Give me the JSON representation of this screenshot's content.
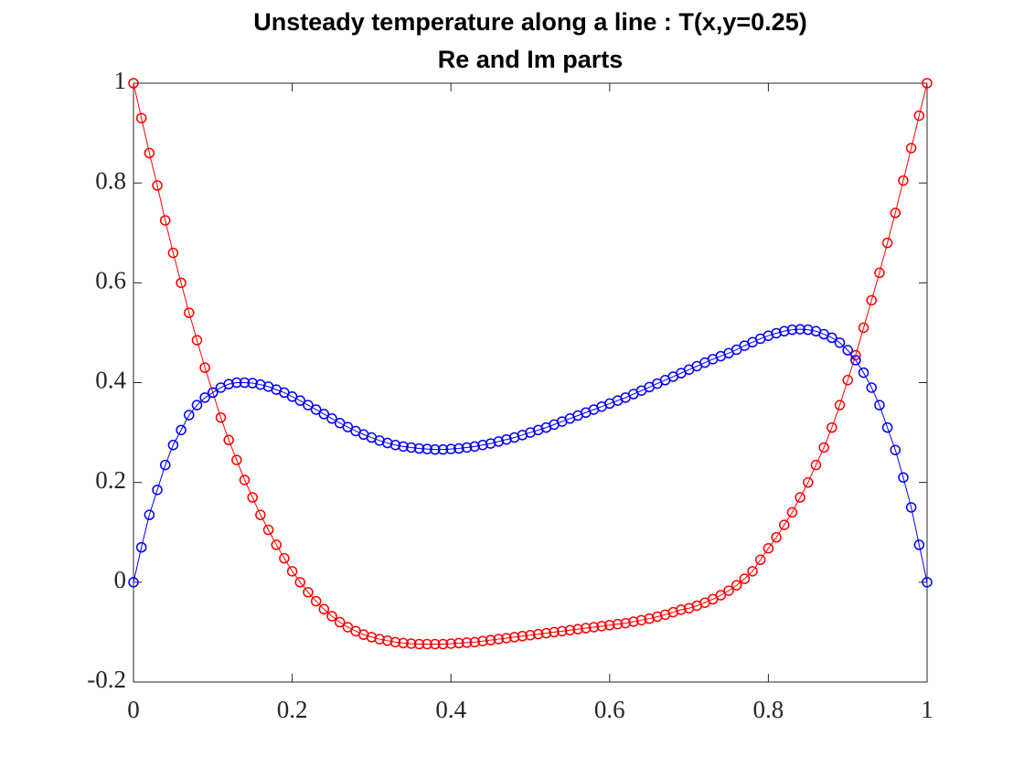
{
  "chart_data": {
    "type": "line",
    "title": "Unsteady temperature along a line : T(x,y=0.25)",
    "subtitle": "Re and Im parts",
    "x": [
      0,
      0.01,
      0.02,
      0.03,
      0.04,
      0.05,
      0.06,
      0.07,
      0.08,
      0.09,
      0.1,
      0.11,
      0.12,
      0.13,
      0.14,
      0.15,
      0.16,
      0.17,
      0.18,
      0.19,
      0.2,
      0.21,
      0.22,
      0.23,
      0.24,
      0.25,
      0.26,
      0.27,
      0.28,
      0.29,
      0.3,
      0.31,
      0.32,
      0.33,
      0.34,
      0.35,
      0.36,
      0.37,
      0.38,
      0.39,
      0.4,
      0.41,
      0.42,
      0.43,
      0.44,
      0.45,
      0.46,
      0.47,
      0.48,
      0.49,
      0.5,
      0.51,
      0.52,
      0.53,
      0.54,
      0.55,
      0.56,
      0.57,
      0.58,
      0.59,
      0.6,
      0.61,
      0.62,
      0.63,
      0.64,
      0.65,
      0.66,
      0.67,
      0.68,
      0.69,
      0.7,
      0.71,
      0.72,
      0.73,
      0.74,
      0.75,
      0.76,
      0.77,
      0.78,
      0.79,
      0.8,
      0.81,
      0.82,
      0.83,
      0.84,
      0.85,
      0.86,
      0.87,
      0.88,
      0.89,
      0.9,
      0.91,
      0.92,
      0.93,
      0.94,
      0.95,
      0.96,
      0.97,
      0.98,
      0.99,
      1
    ],
    "series": [
      {
        "color": "#ff0000",
        "values": [
          1,
          0.93,
          0.86,
          0.795,
          0.725,
          0.66,
          0.6,
          0.54,
          0.485,
          0.43,
          0.38,
          0.33,
          0.285,
          0.245,
          0.205,
          0.17,
          0.135,
          0.105,
          0.075,
          0.048,
          0.022,
          0,
          -0.02,
          -0.038,
          -0.054,
          -0.068,
          -0.08,
          -0.09,
          -0.098,
          -0.105,
          -0.11,
          -0.114,
          -0.117,
          -0.12,
          -0.122,
          -0.123,
          -0.124,
          -0.124,
          -0.124,
          -0.124,
          -0.123,
          -0.122,
          -0.121,
          -0.12,
          -0.118,
          -0.116,
          -0.114,
          -0.112,
          -0.11,
          -0.108,
          -0.106,
          -0.104,
          -0.102,
          -0.1,
          -0.098,
          -0.096,
          -0.094,
          -0.092,
          -0.09,
          -0.088,
          -0.086,
          -0.084,
          -0.082,
          -0.079,
          -0.076,
          -0.073,
          -0.069,
          -0.065,
          -0.06,
          -0.055,
          -0.052,
          -0.047,
          -0.041,
          -0.034,
          -0.026,
          -0.017,
          -0.006,
          0.007,
          0.022,
          0.045,
          0.068,
          0.09,
          0.115,
          0.14,
          0.17,
          0.2,
          0.235,
          0.27,
          0.31,
          0.355,
          0.405,
          0.455,
          0.51,
          0.565,
          0.62,
          0.68,
          0.74,
          0.805,
          0.87,
          0.935,
          1
        ]
      },
      {
        "color": "#0000ff",
        "values": [
          0,
          0.07,
          0.135,
          0.185,
          0.235,
          0.275,
          0.305,
          0.335,
          0.355,
          0.37,
          0.38,
          0.39,
          0.397,
          0.4,
          0.4,
          0.399,
          0.396,
          0.392,
          0.386,
          0.38,
          0.372,
          0.364,
          0.355,
          0.346,
          0.337,
          0.328,
          0.319,
          0.311,
          0.303,
          0.296,
          0.29,
          0.284,
          0.279,
          0.275,
          0.272,
          0.27,
          0.268,
          0.267,
          0.266,
          0.266,
          0.267,
          0.268,
          0.27,
          0.272,
          0.275,
          0.278,
          0.282,
          0.286,
          0.29,
          0.295,
          0.3,
          0.305,
          0.31,
          0.316,
          0.322,
          0.328,
          0.334,
          0.34,
          0.346,
          0.352,
          0.358,
          0.364,
          0.37,
          0.377,
          0.384,
          0.391,
          0.398,
          0.405,
          0.412,
          0.419,
          0.426,
          0.433,
          0.44,
          0.447,
          0.453,
          0.459,
          0.466,
          0.474,
          0.481,
          0.488,
          0.494,
          0.499,
          0.503,
          0.506,
          0.507,
          0.506,
          0.503,
          0.497,
          0.49,
          0.48,
          0.465,
          0.445,
          0.42,
          0.39,
          0.355,
          0.31,
          0.265,
          0.21,
          0.15,
          0.075,
          0
        ]
      }
    ],
    "xlim": [
      0,
      1
    ],
    "ylim": [
      -0.2,
      1
    ],
    "xticks": [
      0,
      0.2,
      0.4,
      0.6,
      0.8,
      1
    ],
    "yticks": [
      -0.2,
      0,
      0.2,
      0.4,
      0.6,
      0.8,
      1
    ],
    "grid": false,
    "marker": "circle"
  }
}
